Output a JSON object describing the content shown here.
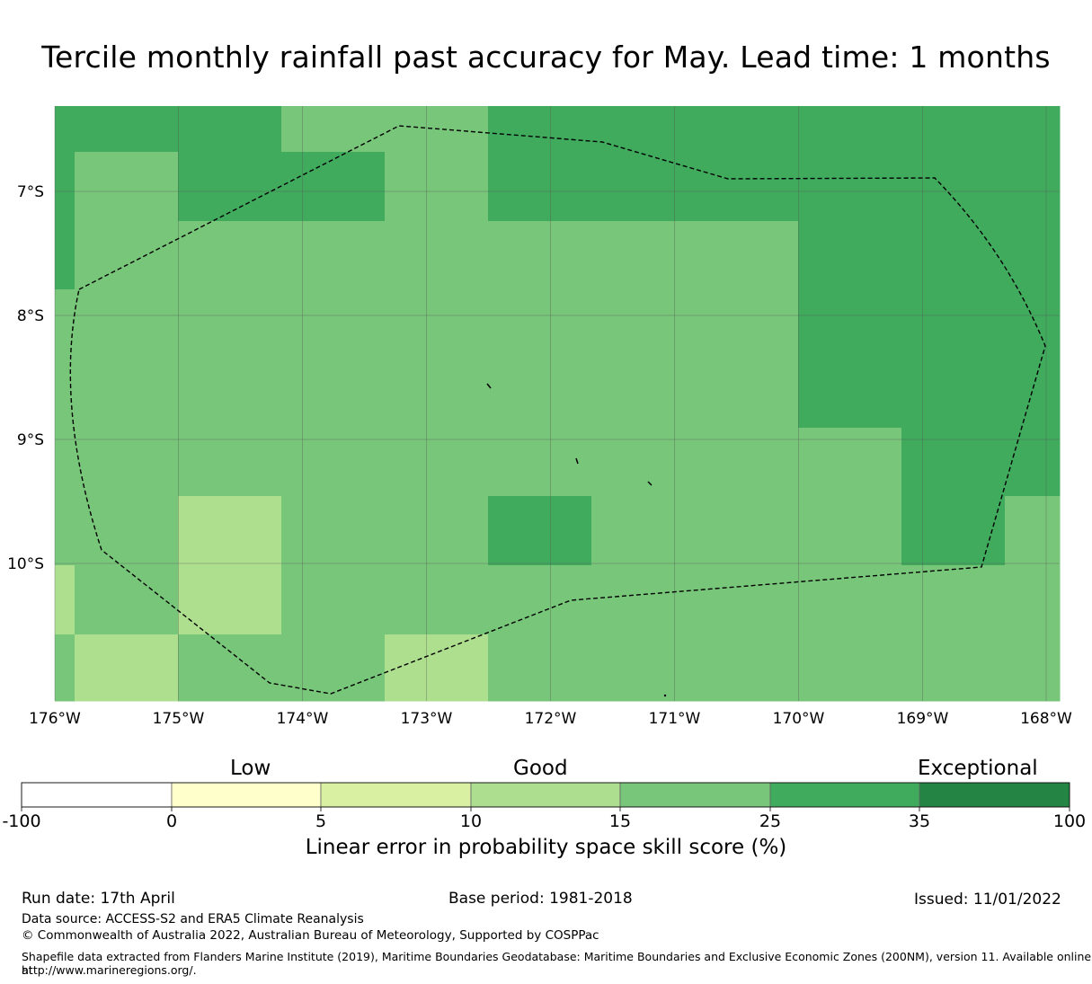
{
  "title": "Tercile monthly rainfall past accuracy for May. Lead time: 1 months",
  "map": {
    "lon_ticks": [
      "176°W",
      "175°W",
      "174°W",
      "173°W",
      "172°W",
      "171°W",
      "170°W",
      "169°W",
      "168°W"
    ],
    "lat_ticks": [
      "7°S",
      "8°S",
      "9°S",
      "10°S"
    ],
    "colors": {
      "light": "#addf8e",
      "medium": "#78c679",
      "dark": "#41ab5d",
      "boundary": "#000000",
      "grid": "#555555"
    },
    "grid_lines": true,
    "boundary_style": "dashed"
  },
  "colorbar": {
    "category_labels": [
      "Low",
      "Good",
      "Exceptional"
    ],
    "ticks": [
      "-100",
      "0",
      "5",
      "10",
      "15",
      "25",
      "35",
      "100"
    ],
    "colors": [
      "#ffffff",
      "#ffffcc",
      "#d9f0a3",
      "#addd8e",
      "#78c679",
      "#41ab5d",
      "#238443"
    ],
    "label": "Linear error in probability space skill score (%)"
  },
  "footer": {
    "run_date": "Run date: 17th April",
    "base_period": "Base period: 1981-2018",
    "issued": "Issued: 11/01/2022",
    "data_source": "Data source: ACCESS-S2 and ERA5 Climate Reanalysis",
    "copyright": "© Commonwealth of Australia 2022, Australian Bureau of Meteorology, Supported by COSPPac",
    "shapefile_line1": "Shapefile data extracted from Flanders Marine Institute (2019), Maritime Boundaries Geodatabase: Maritime Boundaries and Exclusive Economic Zones (200NM), version 11. Available online at",
    "shapefile_line2": "http://www.marineregions.org/."
  }
}
